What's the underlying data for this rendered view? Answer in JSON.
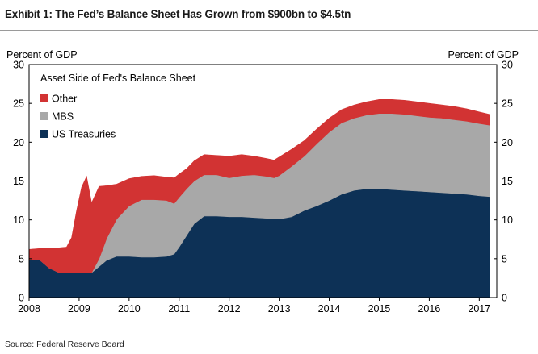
{
  "exhibit_title": "Exhibit 1: The Fed’s Balance Sheet Has Grown from $900bn to $4.5tn",
  "source": "Source: Federal Reserve Board",
  "colors": {
    "treasuries": "#0d3156",
    "mbs": "#a8a8a8",
    "other": "#d23333",
    "axis": "#000000"
  },
  "chart_data": {
    "type": "area",
    "stacked": true,
    "title": "Asset Side of Fed's Balance Sheet",
    "ylabel_left": "Percent of GDP",
    "ylabel_right": "Percent of GDP",
    "ylim": [
      0,
      30
    ],
    "yticks": [
      0,
      5,
      10,
      15,
      20,
      25,
      30
    ],
    "yticks_right": [
      0,
      5,
      10,
      15,
      20,
      25,
      30
    ],
    "xlim": [
      2008.0,
      2017.35
    ],
    "xticks": [
      "2008",
      "2009",
      "2010",
      "2011",
      "2012",
      "2013",
      "2014",
      "2015",
      "2016",
      "2017"
    ],
    "legend_position": "top-left",
    "x": [
      2008.0,
      2008.2,
      2008.4,
      2008.6,
      2008.75,
      2008.85,
      2008.95,
      2009.05,
      2009.15,
      2009.25,
      2009.4,
      2009.55,
      2009.75,
      2010.0,
      2010.25,
      2010.5,
      2010.75,
      2010.9,
      2011.0,
      2011.15,
      2011.3,
      2011.5,
      2011.75,
      2012.0,
      2012.25,
      2012.5,
      2012.75,
      2012.9,
      2013.0,
      2013.25,
      2013.5,
      2013.75,
      2014.0,
      2014.25,
      2014.5,
      2014.75,
      2015.0,
      2015.25,
      2015.5,
      2015.75,
      2016.0,
      2016.25,
      2016.5,
      2016.75,
      2017.0,
      2017.2
    ],
    "series": [
      {
        "name": "US Treasuries",
        "values": [
          4.9,
          4.9,
          3.8,
          3.2,
          3.2,
          3.2,
          3.2,
          3.2,
          3.2,
          3.2,
          4.0,
          4.8,
          5.3,
          5.3,
          5.2,
          5.2,
          5.3,
          5.6,
          6.5,
          8.0,
          9.5,
          10.5,
          10.5,
          10.4,
          10.4,
          10.3,
          10.2,
          10.1,
          10.1,
          10.4,
          11.2,
          11.8,
          12.5,
          13.3,
          13.8,
          14.0,
          14.0,
          13.9,
          13.8,
          13.7,
          13.6,
          13.5,
          13.4,
          13.3,
          13.1,
          13.0
        ]
      },
      {
        "name": "MBS",
        "values": [
          0,
          0,
          0,
          0,
          0,
          0,
          0,
          0,
          0,
          0,
          1.0,
          2.8,
          4.8,
          6.5,
          7.4,
          7.4,
          7.2,
          6.5,
          6.4,
          6.0,
          5.5,
          5.3,
          5.3,
          5.0,
          5.3,
          5.5,
          5.4,
          5.3,
          5.6,
          6.5,
          7.0,
          8.0,
          8.8,
          9.2,
          9.3,
          9.5,
          9.7,
          9.8,
          9.8,
          9.7,
          9.6,
          9.6,
          9.5,
          9.4,
          9.3,
          9.2
        ]
      },
      {
        "name": "Other",
        "values": [
          1.3,
          1.4,
          2.6,
          3.2,
          3.3,
          4.5,
          8.0,
          11.0,
          12.4,
          9.0,
          9.3,
          6.8,
          4.5,
          3.5,
          3.0,
          3.1,
          3.0,
          3.3,
          3.0,
          2.6,
          2.6,
          2.6,
          2.5,
          2.8,
          2.7,
          2.4,
          2.3,
          2.3,
          2.4,
          2.2,
          2.0,
          1.9,
          1.8,
          1.7,
          1.7,
          1.7,
          1.8,
          1.8,
          1.8,
          1.8,
          1.8,
          1.7,
          1.7,
          1.6,
          1.5,
          1.4
        ]
      }
    ]
  }
}
